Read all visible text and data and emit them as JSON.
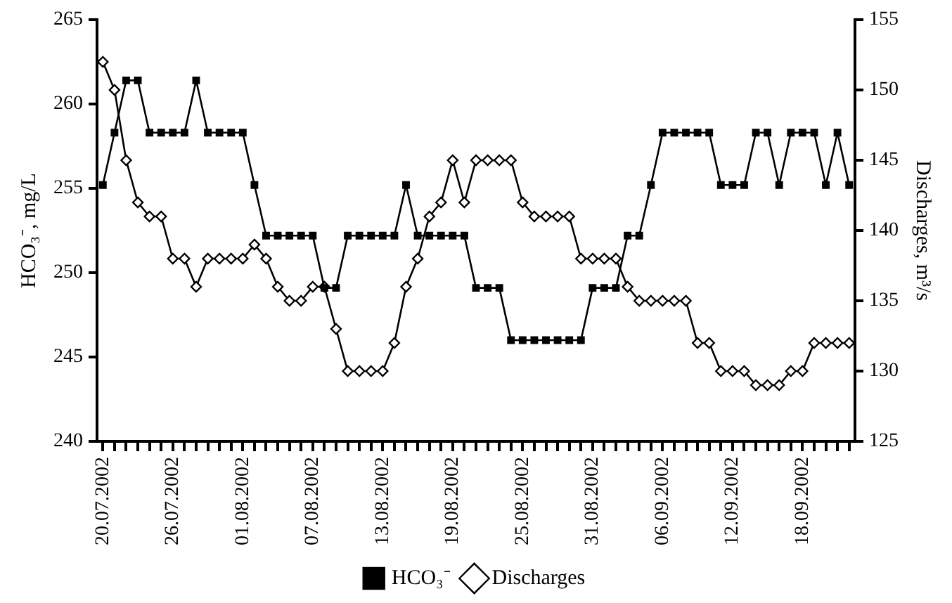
{
  "chart_data": {
    "type": "line",
    "ylabel": "HCO₃⁻, mg/L",
    "y2label": "Discharges, m³/s",
    "categories": [
      "20.07.2002",
      null,
      null,
      null,
      null,
      null,
      "26.07.2002",
      null,
      null,
      null,
      null,
      null,
      "01.08.2002",
      null,
      null,
      null,
      null,
      null,
      "07.08.2002",
      null,
      null,
      null,
      null,
      null,
      "13.08.2002",
      null,
      null,
      null,
      null,
      null,
      "19.08.2002",
      null,
      null,
      null,
      null,
      null,
      "25.08.2002",
      null,
      null,
      null,
      null,
      null,
      "31.08.2002",
      null,
      null,
      null,
      null,
      null,
      "06.09.2002",
      null,
      null,
      null,
      null,
      null,
      "12.09.2002",
      null,
      null,
      null,
      null,
      null,
      "18.09.2002",
      null,
      null,
      null,
      null
    ],
    "series": [
      {
        "name": "HCO₃⁻",
        "color": "#000000",
        "marker": "square",
        "values": [
          255.2,
          258.3,
          261.4,
          261.4,
          258.3,
          258.3,
          258.3,
          258.3,
          261.4,
          258.3,
          258.3,
          258.3,
          258.3,
          255.2,
          252.2,
          252.2,
          252.2,
          252.2,
          252.2,
          249.1,
          249.1,
          252.2,
          252.2,
          252.2,
          252.2,
          252.2,
          255.2,
          252.2,
          252.2,
          252.2,
          252.2,
          252.2,
          249.1,
          249.1,
          249.1,
          246.0,
          246.0,
          246.0,
          246.0,
          246.0,
          246.0,
          246.0,
          249.1,
          249.1,
          249.1,
          252.2,
          252.2,
          255.2,
          258.3,
          258.3,
          258.3,
          258.3,
          258.3,
          255.2,
          255.2,
          255.2,
          258.3,
          258.3,
          255.2,
          258.3,
          258.3,
          258.3,
          255.2,
          258.3,
          255.2
        ]
      },
      {
        "name": "Discharges",
        "color": "#000000",
        "marker": "diamond",
        "axis": "y2",
        "values": [
          152,
          150,
          145,
          142,
          141,
          141,
          138,
          138,
          136,
          138,
          138,
          138,
          138,
          139,
          138,
          136,
          135,
          135,
          136,
          136,
          133,
          130,
          130,
          130,
          130,
          132,
          136,
          138,
          141,
          142,
          145,
          142,
          145,
          145,
          145,
          145,
          142,
          141,
          141,
          141,
          141,
          138,
          138,
          138,
          138,
          136,
          135,
          135,
          135,
          135,
          135,
          132,
          132,
          130,
          130,
          130,
          129,
          129,
          129,
          130,
          130,
          132,
          132,
          132,
          132
        ]
      }
    ],
    "ylim": [
      240,
      265
    ],
    "yticks": [
      240,
      245,
      250,
      255,
      260,
      265
    ],
    "y2lim": [
      125,
      155
    ],
    "y2ticks": [
      125,
      130,
      135,
      140,
      145,
      150,
      155
    ],
    "grid": false,
    "legend": "bottom",
    "line_style": "solid"
  }
}
